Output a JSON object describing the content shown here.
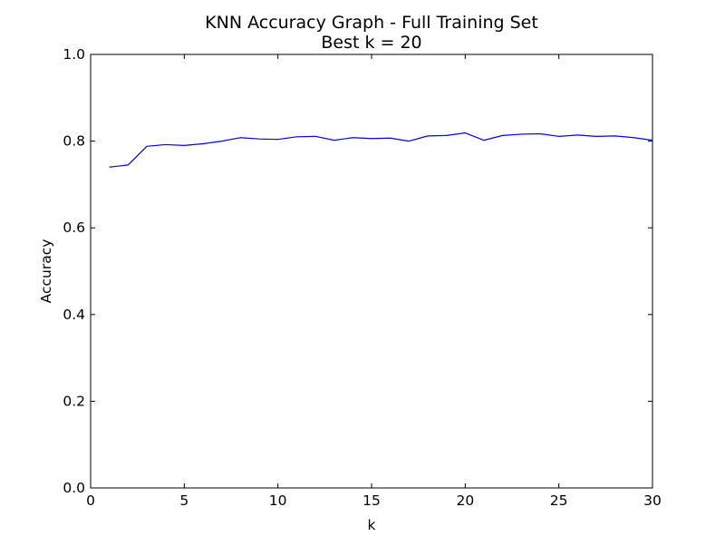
{
  "chart_data": {
    "type": "line",
    "title": "KNN Accuracy Graph - Full Training Set",
    "subtitle": "Best k = 20",
    "xlabel": "k",
    "ylabel": "Accuracy",
    "xlim": [
      0,
      30
    ],
    "ylim": [
      0.0,
      1.0
    ],
    "x_ticks": [
      "0",
      "5",
      "10",
      "15",
      "20",
      "25",
      "30"
    ],
    "y_ticks": [
      "0.0",
      "0.2",
      "0.4",
      "0.6",
      "0.8",
      "1.0"
    ],
    "grid": false,
    "legend": "none",
    "series": [
      {
        "color": "#0000ff",
        "x": [
          1,
          2,
          3,
          4,
          5,
          6,
          7,
          8,
          9,
          10,
          11,
          12,
          13,
          14,
          15,
          16,
          17,
          18,
          19,
          20,
          21,
          22,
          23,
          24,
          25,
          26,
          27,
          28,
          29,
          30
        ],
        "values": [
          0.74,
          0.745,
          0.788,
          0.792,
          0.79,
          0.794,
          0.8,
          0.808,
          0.805,
          0.804,
          0.81,
          0.811,
          0.802,
          0.808,
          0.806,
          0.807,
          0.8,
          0.812,
          0.813,
          0.819,
          0.802,
          0.813,
          0.816,
          0.817,
          0.811,
          0.814,
          0.811,
          0.812,
          0.808,
          0.802
        ]
      }
    ]
  }
}
